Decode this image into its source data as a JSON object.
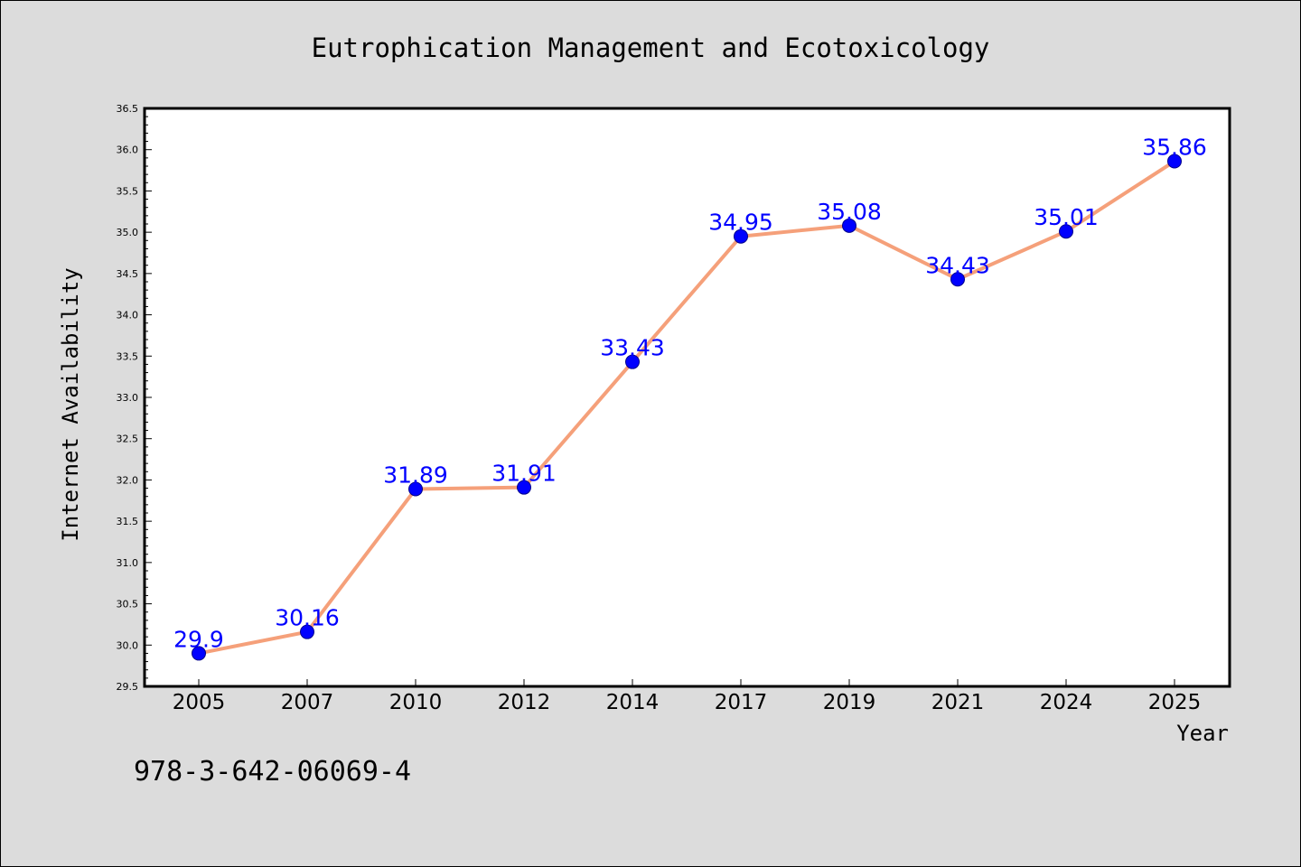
{
  "chart_data": {
    "type": "line",
    "title": "Eutrophication Management and Ecotoxicology",
    "xlabel": "Year",
    "ylabel": "Internet Availability",
    "categories": [
      "2005",
      "2007",
      "2010",
      "2012",
      "2014",
      "2017",
      "2019",
      "2021",
      "2024",
      "2025"
    ],
    "series": [
      {
        "values": [
          29.9,
          30.16,
          31.89,
          31.91,
          33.43,
          34.95,
          35.08,
          34.43,
          35.01,
          35.86
        ],
        "data_labels": [
          "29.9",
          "30.16",
          "31.89",
          "31.91",
          "33.43",
          "34.95",
          "35.08",
          "34.43",
          "35.01",
          "35.86"
        ],
        "line_color": "#f5a07a",
        "marker_color": "#0000ff"
      }
    ],
    "ylim": [
      29.5,
      36.5
    ],
    "yticks": [
      "29.5",
      "30.0",
      "30.5",
      "31.0",
      "31.5",
      "32.0",
      "32.5",
      "33.0",
      "33.5",
      "34.0",
      "34.5",
      "35.0",
      "35.5",
      "36.0",
      "36.5"
    ],
    "grid": false,
    "legend": "none"
  },
  "footnote": "978-3-642-06069-4",
  "colors": {
    "background": "#dcdcdc",
    "plot_background": "#ffffff",
    "line": "#f5a07a",
    "marker": "#0000ff",
    "data_label": "#0000ff"
  }
}
